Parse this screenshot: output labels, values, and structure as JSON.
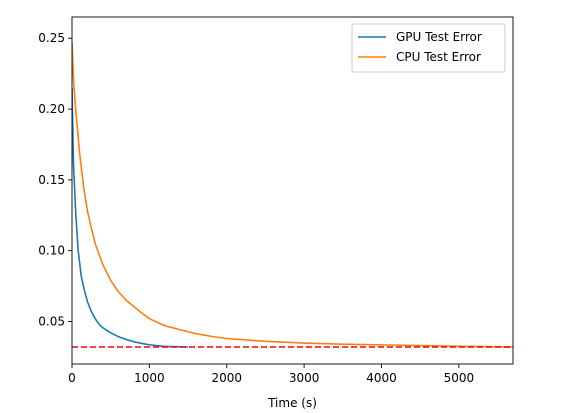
{
  "chart_data": {
    "type": "line",
    "title": "",
    "xlabel": "Time (s)",
    "ylabel": "",
    "xlim": [
      0,
      5700
    ],
    "ylim": [
      0.02,
      0.265
    ],
    "x_ticks": [
      0,
      1000,
      2000,
      3000,
      4000,
      5000
    ],
    "x_tick_labels": [
      "0",
      "1000",
      "2000",
      "3000",
      "4000",
      "5000"
    ],
    "y_ticks": [
      0.05,
      0.1,
      0.15,
      0.2,
      0.25
    ],
    "y_tick_labels": [
      "0.05",
      "0.10",
      "0.15",
      "0.20",
      "0.25"
    ],
    "grid": false,
    "legend_position": "top-right",
    "series": [
      {
        "name": "GPU Test Error",
        "color": "#1f77b4",
        "x": [
          0,
          20,
          50,
          80,
          120,
          160,
          200,
          250,
          300,
          350,
          400,
          500,
          600,
          700,
          800,
          900,
          1000,
          1100,
          1200,
          1300,
          1400,
          1500
        ],
        "y": [
          0.215,
          0.16,
          0.125,
          0.1,
          0.082,
          0.072,
          0.064,
          0.057,
          0.052,
          0.048,
          0.0455,
          0.042,
          0.0393,
          0.0373,
          0.0357,
          0.0345,
          0.0336,
          0.0329,
          0.0324,
          0.0322,
          0.0321,
          0.032
        ]
      },
      {
        "name": "CPU Test Error",
        "color": "#ff7f0e",
        "x": [
          0,
          20,
          50,
          100,
          150,
          200,
          250,
          300,
          400,
          500,
          600,
          700,
          800,
          900,
          1000,
          1200,
          1400,
          1600,
          1800,
          2000,
          2500,
          3000,
          3500,
          4000,
          4500,
          5000,
          5500,
          5700
        ],
        "y": [
          0.247,
          0.22,
          0.198,
          0.168,
          0.145,
          0.128,
          0.116,
          0.105,
          0.09,
          0.079,
          0.071,
          0.065,
          0.0605,
          0.056,
          0.052,
          0.047,
          0.0442,
          0.0415,
          0.0395,
          0.038,
          0.036,
          0.0348,
          0.034,
          0.0335,
          0.033,
          0.0325,
          0.0322,
          0.032
        ]
      }
    ],
    "reference_line": {
      "y": 0.032,
      "color": "#ff0000",
      "style": "dashed"
    }
  }
}
